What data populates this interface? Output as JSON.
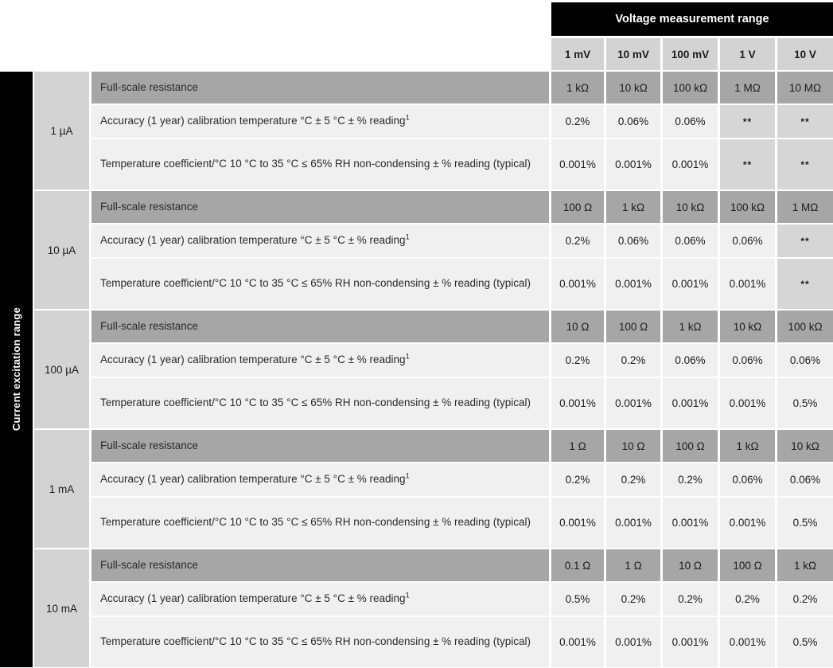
{
  "table": {
    "col_group_header": "Voltage measurement range",
    "row_group_header": "Current excitation range",
    "columns": [
      "1 mV",
      "10 mV",
      "100 mV",
      "1 V",
      "10 V"
    ],
    "row_labels": {
      "full_scale": "Full-scale resistance",
      "accuracy": "Accuracy (1 year) calibration temperature °C ± 5 °C ± % reading",
      "accuracy_superscript": "1",
      "temp_coeff": "Temperature coefficient/°C 10 °C to 35 °C ≤ 65% RH non-condensing ± % reading (typical)"
    },
    "groups": [
      {
        "label": "1 µA",
        "full_scale": [
          "1 kΩ",
          "10 kΩ",
          "100 kΩ",
          "1 MΩ",
          "10 MΩ"
        ],
        "accuracy": [
          "0.2%",
          "0.06%",
          "0.06%",
          "**",
          "**"
        ],
        "temp_coeff": [
          "0.001%",
          "0.001%",
          "0.001%",
          "**",
          "**"
        ]
      },
      {
        "label": "10 µA",
        "full_scale": [
          "100 Ω",
          "1 kΩ",
          "10 kΩ",
          "100 kΩ",
          "1 MΩ"
        ],
        "accuracy": [
          "0.2%",
          "0.06%",
          "0.06%",
          "0.06%",
          "**"
        ],
        "temp_coeff": [
          "0.001%",
          "0.001%",
          "0.001%",
          "0.001%",
          "**"
        ]
      },
      {
        "label": "100 µA",
        "full_scale": [
          "10 Ω",
          "100 Ω",
          "1 kΩ",
          "10 kΩ",
          "100 kΩ"
        ],
        "accuracy": [
          "0.2%",
          "0.2%",
          "0.06%",
          "0.06%",
          "0.06%"
        ],
        "temp_coeff": [
          "0.001%",
          "0.001%",
          "0.001%",
          "0.001%",
          "0.5%"
        ]
      },
      {
        "label": "1 mA",
        "full_scale": [
          "1 Ω",
          "10 Ω",
          "100 Ω",
          "1 kΩ",
          "10 kΩ"
        ],
        "accuracy": [
          "0.2%",
          "0.2%",
          "0.2%",
          "0.06%",
          "0.06%"
        ],
        "temp_coeff": [
          "0.001%",
          "0.001%",
          "0.001%",
          "0.001%",
          "0.5%"
        ]
      },
      {
        "label": "10 mA",
        "full_scale": [
          "0.1 Ω",
          "1 Ω",
          "10 Ω",
          "100 Ω",
          "1 kΩ"
        ],
        "accuracy": [
          "0.5%",
          "0.2%",
          "0.2%",
          "0.2%",
          "0.2%"
        ],
        "temp_coeff": [
          "0.001%",
          "0.001%",
          "0.001%",
          "0.001%",
          "0.5%"
        ]
      }
    ]
  },
  "colors": {
    "header_black": "#000000",
    "header_gray": "#d3d3d3",
    "dark_row_gray": "#a6a6a6",
    "light_row_gray": "#f0f0f0",
    "star_cell_gray": "#d6d6d6",
    "text": "#1c1c1c"
  }
}
